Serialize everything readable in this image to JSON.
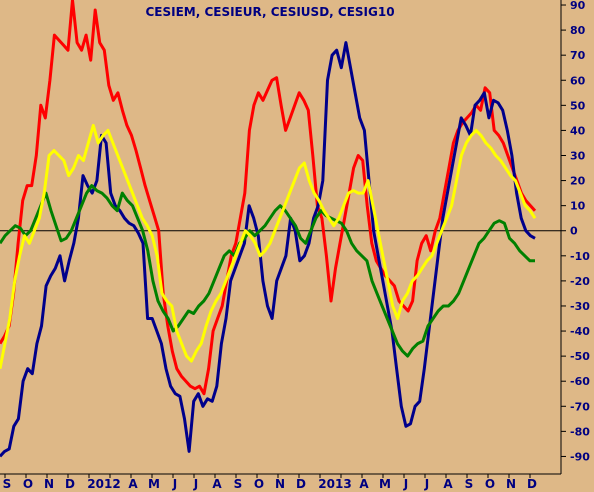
{
  "chart_data": {
    "type": "line",
    "title": "CESIEM, CESIEUR, CESIUSD, CESIG10",
    "xlabel": "",
    "ylabel": "",
    "x_tick_labels": [
      "S",
      "O",
      "N",
      "D",
      "2012",
      "",
      "A",
      "M",
      "J",
      "J",
      "A",
      "S",
      "O",
      "N",
      "D",
      "2013",
      "",
      "A",
      "M",
      "J",
      "J",
      "A",
      "S",
      "O",
      "N",
      "D"
    ],
    "ylim": [
      -95,
      95
    ],
    "y_ticks": [
      90,
      80,
      70,
      60,
      50,
      40,
      30,
      20,
      10,
      0,
      -10,
      -20,
      -30,
      -40,
      -50,
      -60,
      -70,
      -80,
      -90
    ],
    "zero_line": true,
    "grid": false,
    "series": [
      {
        "color": "#ff0000",
        "values": [
          -45,
          -42,
          -38,
          -25,
          -5,
          12,
          18,
          18,
          30,
          50,
          45,
          60,
          78,
          76,
          74,
          72,
          92,
          75,
          72,
          78,
          68,
          88,
          75,
          72,
          58,
          52,
          55,
          48,
          42,
          38,
          32,
          25,
          18,
          12,
          6,
          0,
          -25,
          -38,
          -48,
          -55,
          -58,
          -60,
          -62,
          -63,
          -62,
          -65,
          -55,
          -40,
          -35,
          -30,
          -20,
          -10,
          -5,
          5,
          15,
          40,
          50,
          55,
          52,
          56,
          60,
          61,
          50,
          40,
          45,
          50,
          55,
          52,
          48,
          30,
          10,
          5,
          -10,
          -28,
          -15,
          -5,
          5,
          15,
          25,
          30,
          28,
          10,
          -5,
          -12,
          -15,
          -18,
          -20,
          -22,
          -28,
          -30,
          -32,
          -28,
          -12,
          -5,
          -2,
          -8,
          0,
          5,
          15,
          25,
          35,
          40,
          43,
          45,
          47,
          50,
          48,
          57,
          55,
          40,
          38,
          35,
          30,
          25,
          20,
          15,
          12,
          10,
          8
        ]
      },
      {
        "color": "#00008b",
        "values": [
          -90,
          -88,
          -87,
          -78,
          -75,
          -60,
          -55,
          -57,
          -45,
          -38,
          -22,
          -18,
          -15,
          -10,
          -20,
          -12,
          -5,
          5,
          22,
          18,
          15,
          20,
          38,
          35,
          15,
          10,
          8,
          5,
          3,
          2,
          -1,
          -5,
          -35,
          -35,
          -40,
          -45,
          -55,
          -62,
          -65,
          -66,
          -75,
          -88,
          -68,
          -65,
          -70,
          -67,
          -68,
          -62,
          -45,
          -35,
          -20,
          -15,
          -10,
          -5,
          10,
          5,
          -2,
          -20,
          -30,
          -35,
          -20,
          -15,
          -10,
          5,
          0,
          -12,
          -10,
          -5,
          5,
          10,
          20,
          60,
          70,
          72,
          65,
          75,
          65,
          55,
          45,
          40,
          20,
          0,
          -10,
          -20,
          -30,
          -40,
          -55,
          -70,
          -78,
          -77,
          -70,
          -68,
          -55,
          -40,
          -25,
          -10,
          5,
          15,
          25,
          35,
          45,
          42,
          38,
          50,
          52,
          55,
          45,
          52,
          51,
          48,
          40,
          30,
          15,
          5,
          0,
          -2,
          -3
        ]
      },
      {
        "color": "#008000",
        "values": [
          -5,
          -2,
          0,
          2,
          1,
          -2,
          0,
          5,
          10,
          15,
          8,
          2,
          -4,
          -3,
          0,
          5,
          10,
          15,
          18,
          16,
          15,
          13,
          10,
          8,
          15,
          12,
          10,
          5,
          0,
          -8,
          -20,
          -28,
          -32,
          -35,
          -40,
          -38,
          -35,
          -32,
          -33,
          -30,
          -28,
          -25,
          -20,
          -15,
          -10,
          -8,
          -10,
          -5,
          -3,
          0,
          -2,
          0,
          2,
          5,
          8,
          10,
          8,
          5,
          2,
          -3,
          -5,
          0,
          5,
          8,
          6,
          5,
          4,
          3,
          0,
          -5,
          -8,
          -10,
          -12,
          -20,
          -25,
          -30,
          -35,
          -40,
          -45,
          -48,
          -50,
          -47,
          -45,
          -44,
          -38,
          -35,
          -32,
          -30,
          -30,
          -28,
          -25,
          -20,
          -15,
          -10,
          -5,
          -3,
          0,
          3,
          4,
          3,
          -3,
          -5,
          -8,
          -10,
          -12,
          -12
        ]
      },
      {
        "color": "#ffff00",
        "values": [
          -55,
          -45,
          -35,
          -20,
          -10,
          -2,
          -5,
          0,
          5,
          15,
          30,
          32,
          30,
          28,
          22,
          25,
          30,
          28,
          35,
          42,
          35,
          38,
          40,
          35,
          30,
          25,
          20,
          15,
          10,
          5,
          2,
          -2,
          -10,
          -25,
          -28,
          -30,
          -40,
          -45,
          -50,
          -52,
          -48,
          -45,
          -38,
          -32,
          -28,
          -25,
          -20,
          -15,
          -10,
          -5,
          0,
          -2,
          -5,
          -10,
          -8,
          -5,
          0,
          5,
          10,
          15,
          20,
          25,
          27,
          20,
          15,
          12,
          8,
          5,
          2,
          5,
          10,
          15,
          16,
          15,
          15,
          20,
          10,
          0,
          -10,
          -20,
          -30,
          -35,
          -28,
          -25,
          -20,
          -18,
          -15,
          -12,
          -10,
          -5,
          0,
          5,
          10,
          20,
          30,
          35,
          38,
          40,
          38,
          35,
          33,
          30,
          28,
          25,
          22,
          20,
          15,
          10,
          8,
          5
        ]
      }
    ]
  }
}
